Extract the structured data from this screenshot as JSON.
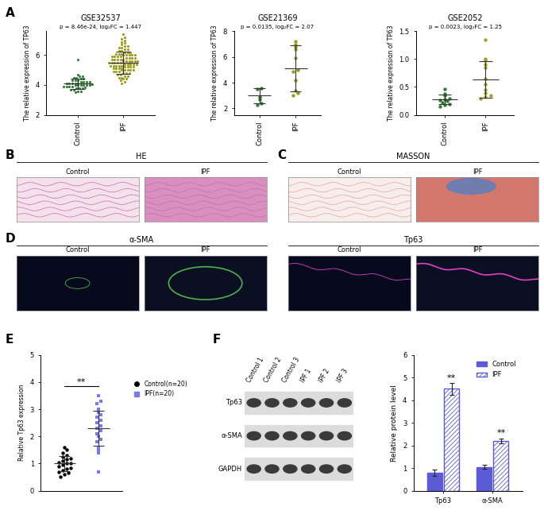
{
  "chart_data": [
    {
      "type": "scatter",
      "panel": "A",
      "title": "GSE32537",
      "subtitle": "p = 8.46e-24, log₂FC = 1.447",
      "y_label": "The relative expression of TP63",
      "categories": [
        "Control",
        "IPF"
      ],
      "groups": [
        {
          "color": "#2e7d32",
          "marker": "circle",
          "mean": 4.1,
          "sd": 0.35,
          "values": [
            3.6,
            3.7,
            3.7,
            3.8,
            3.8,
            3.8,
            3.9,
            3.9,
            3.9,
            3.9,
            4.0,
            4.0,
            4.0,
            4.0,
            4.0,
            4.0,
            4.1,
            4.1,
            4.1,
            4.1,
            4.1,
            4.2,
            4.2,
            4.2,
            4.2,
            4.3,
            4.3,
            4.3,
            4.4,
            4.4,
            4.5,
            4.5,
            4.6,
            3.5,
            3.6,
            4.6,
            4.7,
            3.85,
            4.05,
            5.7
          ]
        },
        {
          "color": "#9e9a1c",
          "marker": "circle",
          "mean": 5.5,
          "sd": 0.75,
          "values": [
            4.1,
            4.2,
            4.3,
            4.4,
            4.5,
            4.5,
            4.6,
            4.6,
            4.7,
            4.7,
            4.8,
            4.8,
            4.8,
            4.9,
            4.9,
            4.9,
            5.0,
            5.0,
            5.0,
            5.0,
            5.1,
            5.1,
            5.1,
            5.1,
            5.2,
            5.2,
            5.2,
            5.2,
            5.3,
            5.3,
            5.3,
            5.3,
            5.3,
            5.4,
            5.4,
            5.4,
            5.4,
            5.4,
            5.5,
            5.5,
            5.5,
            5.5,
            5.5,
            5.6,
            5.6,
            5.6,
            5.6,
            5.6,
            5.7,
            5.7,
            5.7,
            5.7,
            5.7,
            5.8,
            5.8,
            5.8,
            5.8,
            5.9,
            5.9,
            5.9,
            5.9,
            6.0,
            6.0,
            6.0,
            6.0,
            6.1,
            6.1,
            6.1,
            6.2,
            6.2,
            6.2,
            6.3,
            6.3,
            6.4,
            6.4,
            6.5,
            6.5,
            6.6,
            6.6,
            6.7,
            6.8,
            6.9,
            7.0,
            7.1,
            7.2,
            7.4,
            4.4,
            5.0,
            5.6,
            6.0
          ]
        }
      ],
      "ylim": [
        2,
        7.6
      ],
      "yticks": [
        2,
        4,
        6
      ]
    },
    {
      "type": "scatter",
      "panel": "A",
      "title": "GSE21369",
      "subtitle": "p = 0.0135, log₂FC = 2.07",
      "y_label": "The relative expression of TP63",
      "categories": [
        "Control",
        "IPF"
      ],
      "groups": [
        {
          "color": "#2e7d32",
          "marker": "circle",
          "mean": 3.0,
          "sd": 0.6,
          "values": [
            3.6,
            3.5,
            2.9,
            2.7,
            2.4,
            2.3
          ]
        },
        {
          "color": "#9e9a1c",
          "marker": "circle",
          "mean": 5.1,
          "sd": 1.8,
          "values": [
            7.2,
            7.0,
            6.8,
            6.6,
            5.9,
            5.0,
            4.9,
            4.2,
            3.4,
            3.2,
            3.0
          ]
        }
      ],
      "ylim": [
        1.5,
        8
      ],
      "yticks": [
        2,
        4,
        6,
        8
      ]
    },
    {
      "type": "scatter",
      "panel": "A",
      "title": "GSE2052",
      "subtitle": "p = 0.0023, log₂FC = 1.25",
      "y_label": "The relative expression of TP63",
      "categories": [
        "Control",
        "IPF"
      ],
      "groups": [
        {
          "color": "#2e7d32",
          "marker": "circle",
          "mean": 0.28,
          "sd": 0.09,
          "values": [
            0.47,
            0.38,
            0.35,
            0.3,
            0.28,
            0.27,
            0.25,
            0.22,
            0.2,
            0.18,
            0.15
          ]
        },
        {
          "color": "#a8a020",
          "marker": "circle",
          "mean": 0.64,
          "sd": 0.33,
          "values": [
            1.35,
            1.0,
            0.98,
            0.9,
            0.85,
            0.65,
            0.55,
            0.45,
            0.4,
            0.35,
            0.32,
            0.3
          ]
        }
      ],
      "ylim": [
        0,
        1.5
      ],
      "yticks": [
        {
          "value": 0,
          "label": "0.0"
        },
        {
          "value": 0.5,
          "label": "0.5"
        },
        {
          "value": 1,
          "label": "1.0"
        },
        {
          "value": 1.5,
          "label": "1.5"
        }
      ]
    },
    {
      "type": "scatter",
      "panel": "E",
      "y_label": "Relative Tp63 expression",
      "categories": [
        null,
        null
      ],
      "tick_labels": "y",
      "significance": "**",
      "legend": "right",
      "groups": [
        {
          "name": "Control(n=20)",
          "color": "#000000",
          "marker": "circle",
          "mean": 1.0,
          "sd": 0.28,
          "values": [
            1.6,
            1.5,
            1.4,
            1.3,
            1.25,
            1.2,
            1.15,
            1.1,
            1.05,
            1.0,
            1.0,
            0.95,
            0.9,
            0.85,
            0.8,
            0.75,
            0.7,
            0.65,
            0.6,
            0.5
          ]
        },
        {
          "name": "IPF(n=20)",
          "color": "#7b7be8",
          "marker": "square",
          "mean": 2.3,
          "sd": 0.65,
          "values": [
            3.5,
            3.3,
            3.2,
            3.0,
            2.9,
            2.8,
            2.7,
            2.6,
            2.5,
            2.4,
            2.3,
            2.2,
            2.1,
            2.0,
            1.9,
            1.8,
            1.6,
            1.5,
            1.4,
            0.7
          ]
        }
      ],
      "ylim": [
        0,
        5
      ],
      "yticks": [
        0,
        1,
        2,
        3,
        4,
        5
      ]
    },
    {
      "type": "bar",
      "panel": "F",
      "y_label": "Relative protein level",
      "categories": [
        "Tp63",
        "α-SMA"
      ],
      "series": [
        {
          "name": "Control",
          "color": "#5b5bd6",
          "values": [
            0.8,
            1.05
          ],
          "errors": [
            0.15,
            0.08
          ]
        },
        {
          "name": "IPF",
          "color": "#5b5bd6",
          "values": [
            4.5,
            2.2
          ],
          "errors": [
            0.25,
            0.12
          ],
          "significance": [
            "**",
            "**"
          ]
        }
      ],
      "ylim": [
        0,
        6
      ],
      "yticks": [
        0,
        1,
        2,
        3,
        4,
        5,
        6
      ],
      "legend": "upper right"
    }
  ],
  "image_panels": [
    {
      "panel": "B",
      "title": "HE",
      "labels": [
        "Control",
        "IPF"
      ]
    },
    {
      "panel": "C",
      "title": "MASSON",
      "labels": [
        "Control",
        "IPF"
      ]
    },
    {
      "panel": "D",
      "title": "α-SMA",
      "labels": [
        "Control",
        "IPF"
      ]
    },
    {
      "panel": "D",
      "title": "Tp63",
      "labels": [
        "Control",
        "IPF"
      ]
    }
  ],
  "blot": {
    "panel": "F",
    "lanes": [
      "Control 1",
      "Control 2",
      "Control 3",
      "IPF 1",
      "IPF 2",
      "IPF 3"
    ],
    "proteins": [
      "Tp63",
      "α-SMA",
      "GAPDH"
    ]
  }
}
